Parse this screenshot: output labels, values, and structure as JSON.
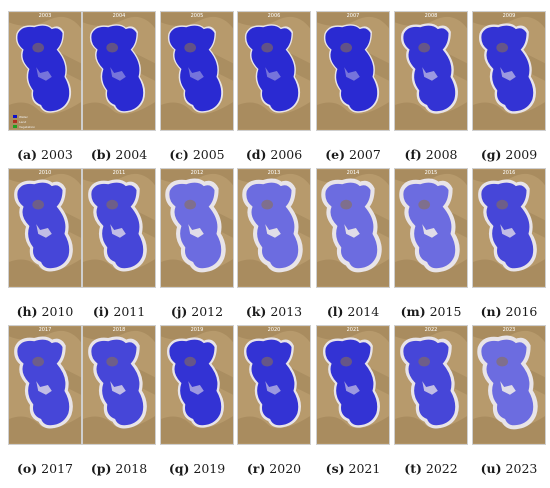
{
  "rows": [
    [
      {
        "letter": "(a)",
        "year": "2003",
        "title": "2003",
        "stage": 0
      },
      {
        "letter": "(b)",
        "year": "2004",
        "title": "2004",
        "stage": 0
      },
      {
        "letter": "(c)",
        "year": "2005",
        "title": "2005",
        "stage": 0
      },
      {
        "letter": "(d)",
        "year": "2006",
        "title": "2006",
        "stage": 0
      },
      {
        "letter": "(e)",
        "year": "2007",
        "title": "2007",
        "stage": 0
      },
      {
        "letter": "(f)",
        "year": "2008",
        "title": "2008",
        "stage": 1
      },
      {
        "letter": "(g)",
        "year": "2009",
        "title": "2009",
        "stage": 1
      }
    ],
    [
      {
        "letter": "(h)",
        "year": "2010",
        "title": "2010",
        "stage": 2
      },
      {
        "letter": "(i)",
        "year": "2011",
        "title": "2011",
        "stage": 2
      },
      {
        "letter": "(j)",
        "year": "2012",
        "title": "2012",
        "stage": 3
      },
      {
        "letter": "(k)",
        "year": "2013",
        "title": "2013",
        "stage": 3
      },
      {
        "letter": "(l)",
        "year": "2014",
        "title": "2014",
        "stage": 3
      },
      {
        "letter": "(m)",
        "year": "2015",
        "title": "2015",
        "stage": 3
      },
      {
        "letter": "(n)",
        "year": "2016",
        "title": "2016",
        "stage": 2
      }
    ],
    [
      {
        "letter": "(o)",
        "year": "2017",
        "title": "2017",
        "stage": 2
      },
      {
        "letter": "(p)",
        "year": "2018",
        "title": "2018",
        "stage": 2
      },
      {
        "letter": "(q)",
        "year": "2019",
        "title": "2019",
        "stage": 1
      },
      {
        "letter": "(r)",
        "year": "2020",
        "title": "2020",
        "stage": 1
      },
      {
        "letter": "(s)",
        "year": "2021",
        "title": "2021",
        "stage": 1
      },
      {
        "letter": "(t)",
        "year": "2022",
        "title": "2022",
        "stage": 2
      },
      {
        "letter": "(u)",
        "year": "2023",
        "title": "2023",
        "stage": 3
      }
    ]
  ],
  "legend": {
    "items": [
      {
        "label": "Water",
        "color": "#1010c8"
      },
      {
        "label": "Land",
        "color": "#b03020"
      },
      {
        "label": "Vegetation",
        "color": "#20a020"
      }
    ]
  },
  "colors": {
    "land": "#b79a6c",
    "land_dark": "#8f7348",
    "water_full": "#2b2bd0",
    "water_dry": "#6e6ee0",
    "salt": "#e8e4e8"
  }
}
